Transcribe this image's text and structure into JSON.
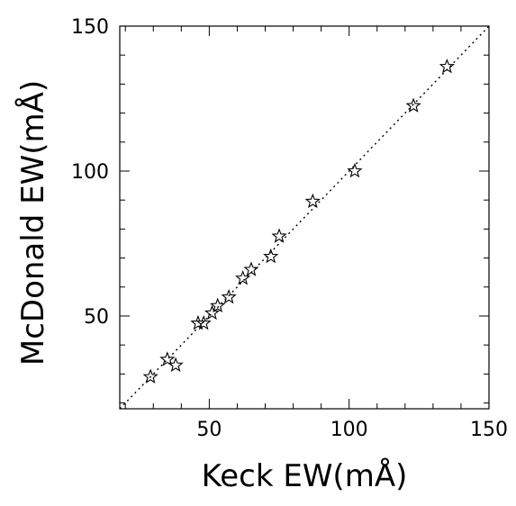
{
  "chart_data": {
    "type": "scatter",
    "xlabel": "Keck EW(mÅ)",
    "ylabel": "McDonald EW(mÅ)",
    "xlim": [
      18,
      150
    ],
    "ylim": [
      18,
      150
    ],
    "x_ticks": [
      50,
      100,
      150
    ],
    "y_ticks": [
      50,
      100,
      150
    ],
    "x_tick_labels": [
      "50",
      "100",
      "150"
    ],
    "y_tick_labels": [
      "50",
      "100",
      "150"
    ],
    "x_minor_step": 10,
    "y_minor_step": 10,
    "marker": "open-star",
    "grid": false,
    "reference_line": {
      "style": "dotted",
      "relation": "y = x"
    },
    "points": [
      {
        "x": 29,
        "y": 29
      },
      {
        "x": 35,
        "y": 35
      },
      {
        "x": 38,
        "y": 33
      },
      {
        "x": 46,
        "y": 47.5
      },
      {
        "x": 48,
        "y": 47.5
      },
      {
        "x": 51,
        "y": 51
      },
      {
        "x": 53,
        "y": 53.5
      },
      {
        "x": 57,
        "y": 56.5
      },
      {
        "x": 62,
        "y": 63
      },
      {
        "x": 65,
        "y": 66
      },
      {
        "x": 72,
        "y": 70.5
      },
      {
        "x": 75,
        "y": 77.5
      },
      {
        "x": 87,
        "y": 89.5
      },
      {
        "x": 102,
        "y": 100
      },
      {
        "x": 123,
        "y": 122.5
      },
      {
        "x": 135,
        "y": 136
      }
    ]
  }
}
